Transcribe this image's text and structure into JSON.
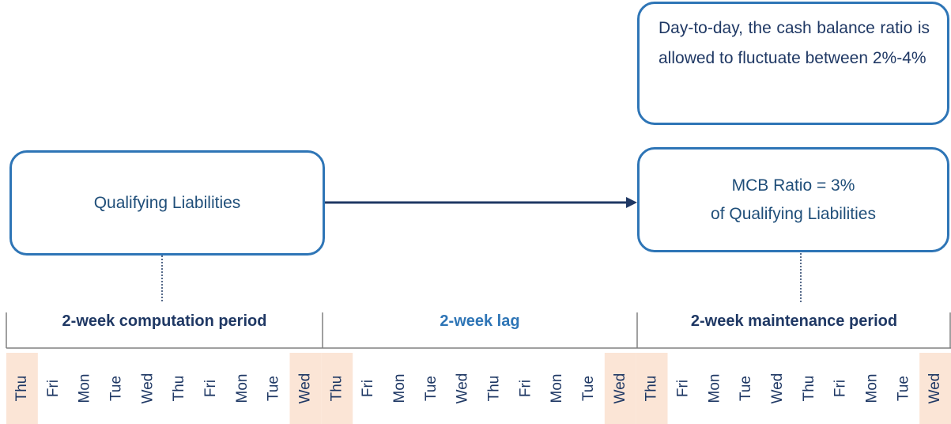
{
  "boxes": {
    "liabilities": {
      "label": "Qualifying Liabilities"
    },
    "ratio": {
      "lines": [
        "MCB Ratio = 3%",
        "of Qualifying Liabilities"
      ]
    },
    "note": {
      "text": "Day-to-day, the cash balance ratio is allowed to fluctuate between 2%-4%"
    }
  },
  "periods": [
    "2-week computation period",
    "2-week lag",
    "2-week maintenance period"
  ],
  "days": [
    "Thu",
    "Fri",
    "Mon",
    "Tue",
    "Wed",
    "Thu",
    "Fri",
    "Mon",
    "Tue",
    "Wed",
    "Thu",
    "Fri",
    "Mon",
    "Tue",
    "Wed",
    "Thu",
    "Fri",
    "Mon",
    "Tue",
    "Wed",
    "Thu",
    "Fri",
    "Mon",
    "Tue",
    "Wed",
    "Thu",
    "Fri",
    "Mon",
    "Tue",
    "Wed"
  ]
}
